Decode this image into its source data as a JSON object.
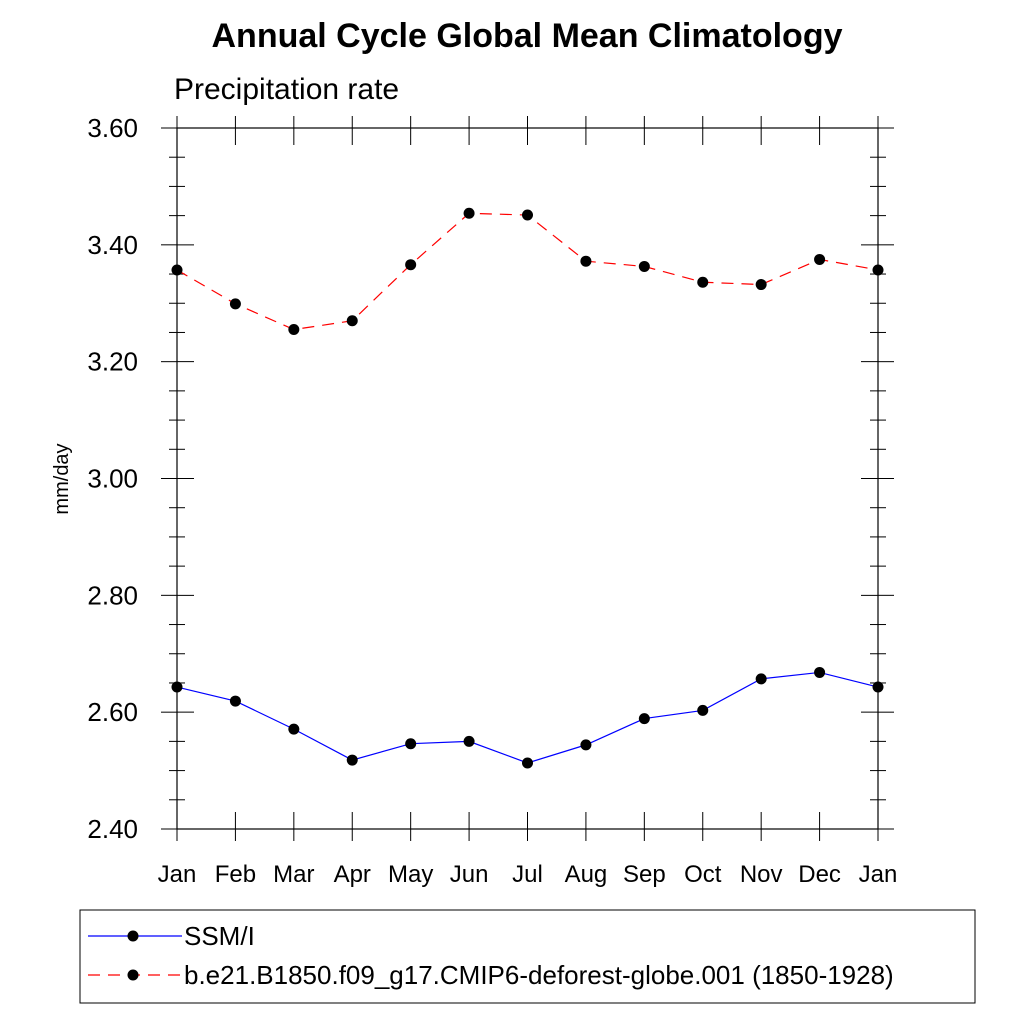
{
  "chart_data": {
    "type": "line",
    "title": "Annual Cycle Global Mean Climatology",
    "subtitle": "Precipitation rate",
    "xlabel": "",
    "ylabel": "mm/day",
    "categories": [
      "Jan",
      "Feb",
      "Mar",
      "Apr",
      "May",
      "Jun",
      "Jul",
      "Aug",
      "Sep",
      "Oct",
      "Nov",
      "Dec",
      "Jan"
    ],
    "ylim": [
      2.4,
      3.6
    ],
    "y_ticks": [
      "2.40",
      "2.60",
      "2.80",
      "3.00",
      "3.20",
      "3.40",
      "3.60"
    ],
    "grid": false,
    "legend_position": "bottom",
    "series": [
      {
        "name": "SSM/I",
        "color": "#0000ff",
        "line_style": "solid",
        "marker": "filled-circle",
        "values": [
          2.643,
          2.619,
          2.571,
          2.518,
          2.546,
          2.55,
          2.513,
          2.544,
          2.589,
          2.603,
          2.657,
          2.668,
          2.643
        ]
      },
      {
        "name": "b.e21.B1850.f09_g17.CMIP6-deforest-globe.001 (1850-1928)",
        "color": "#ff0000",
        "line_style": "dashed",
        "marker": "filled-circle",
        "values": [
          3.357,
          3.299,
          3.255,
          3.27,
          3.366,
          3.454,
          3.451,
          3.372,
          3.363,
          3.336,
          3.332,
          3.375,
          3.357
        ]
      }
    ]
  }
}
